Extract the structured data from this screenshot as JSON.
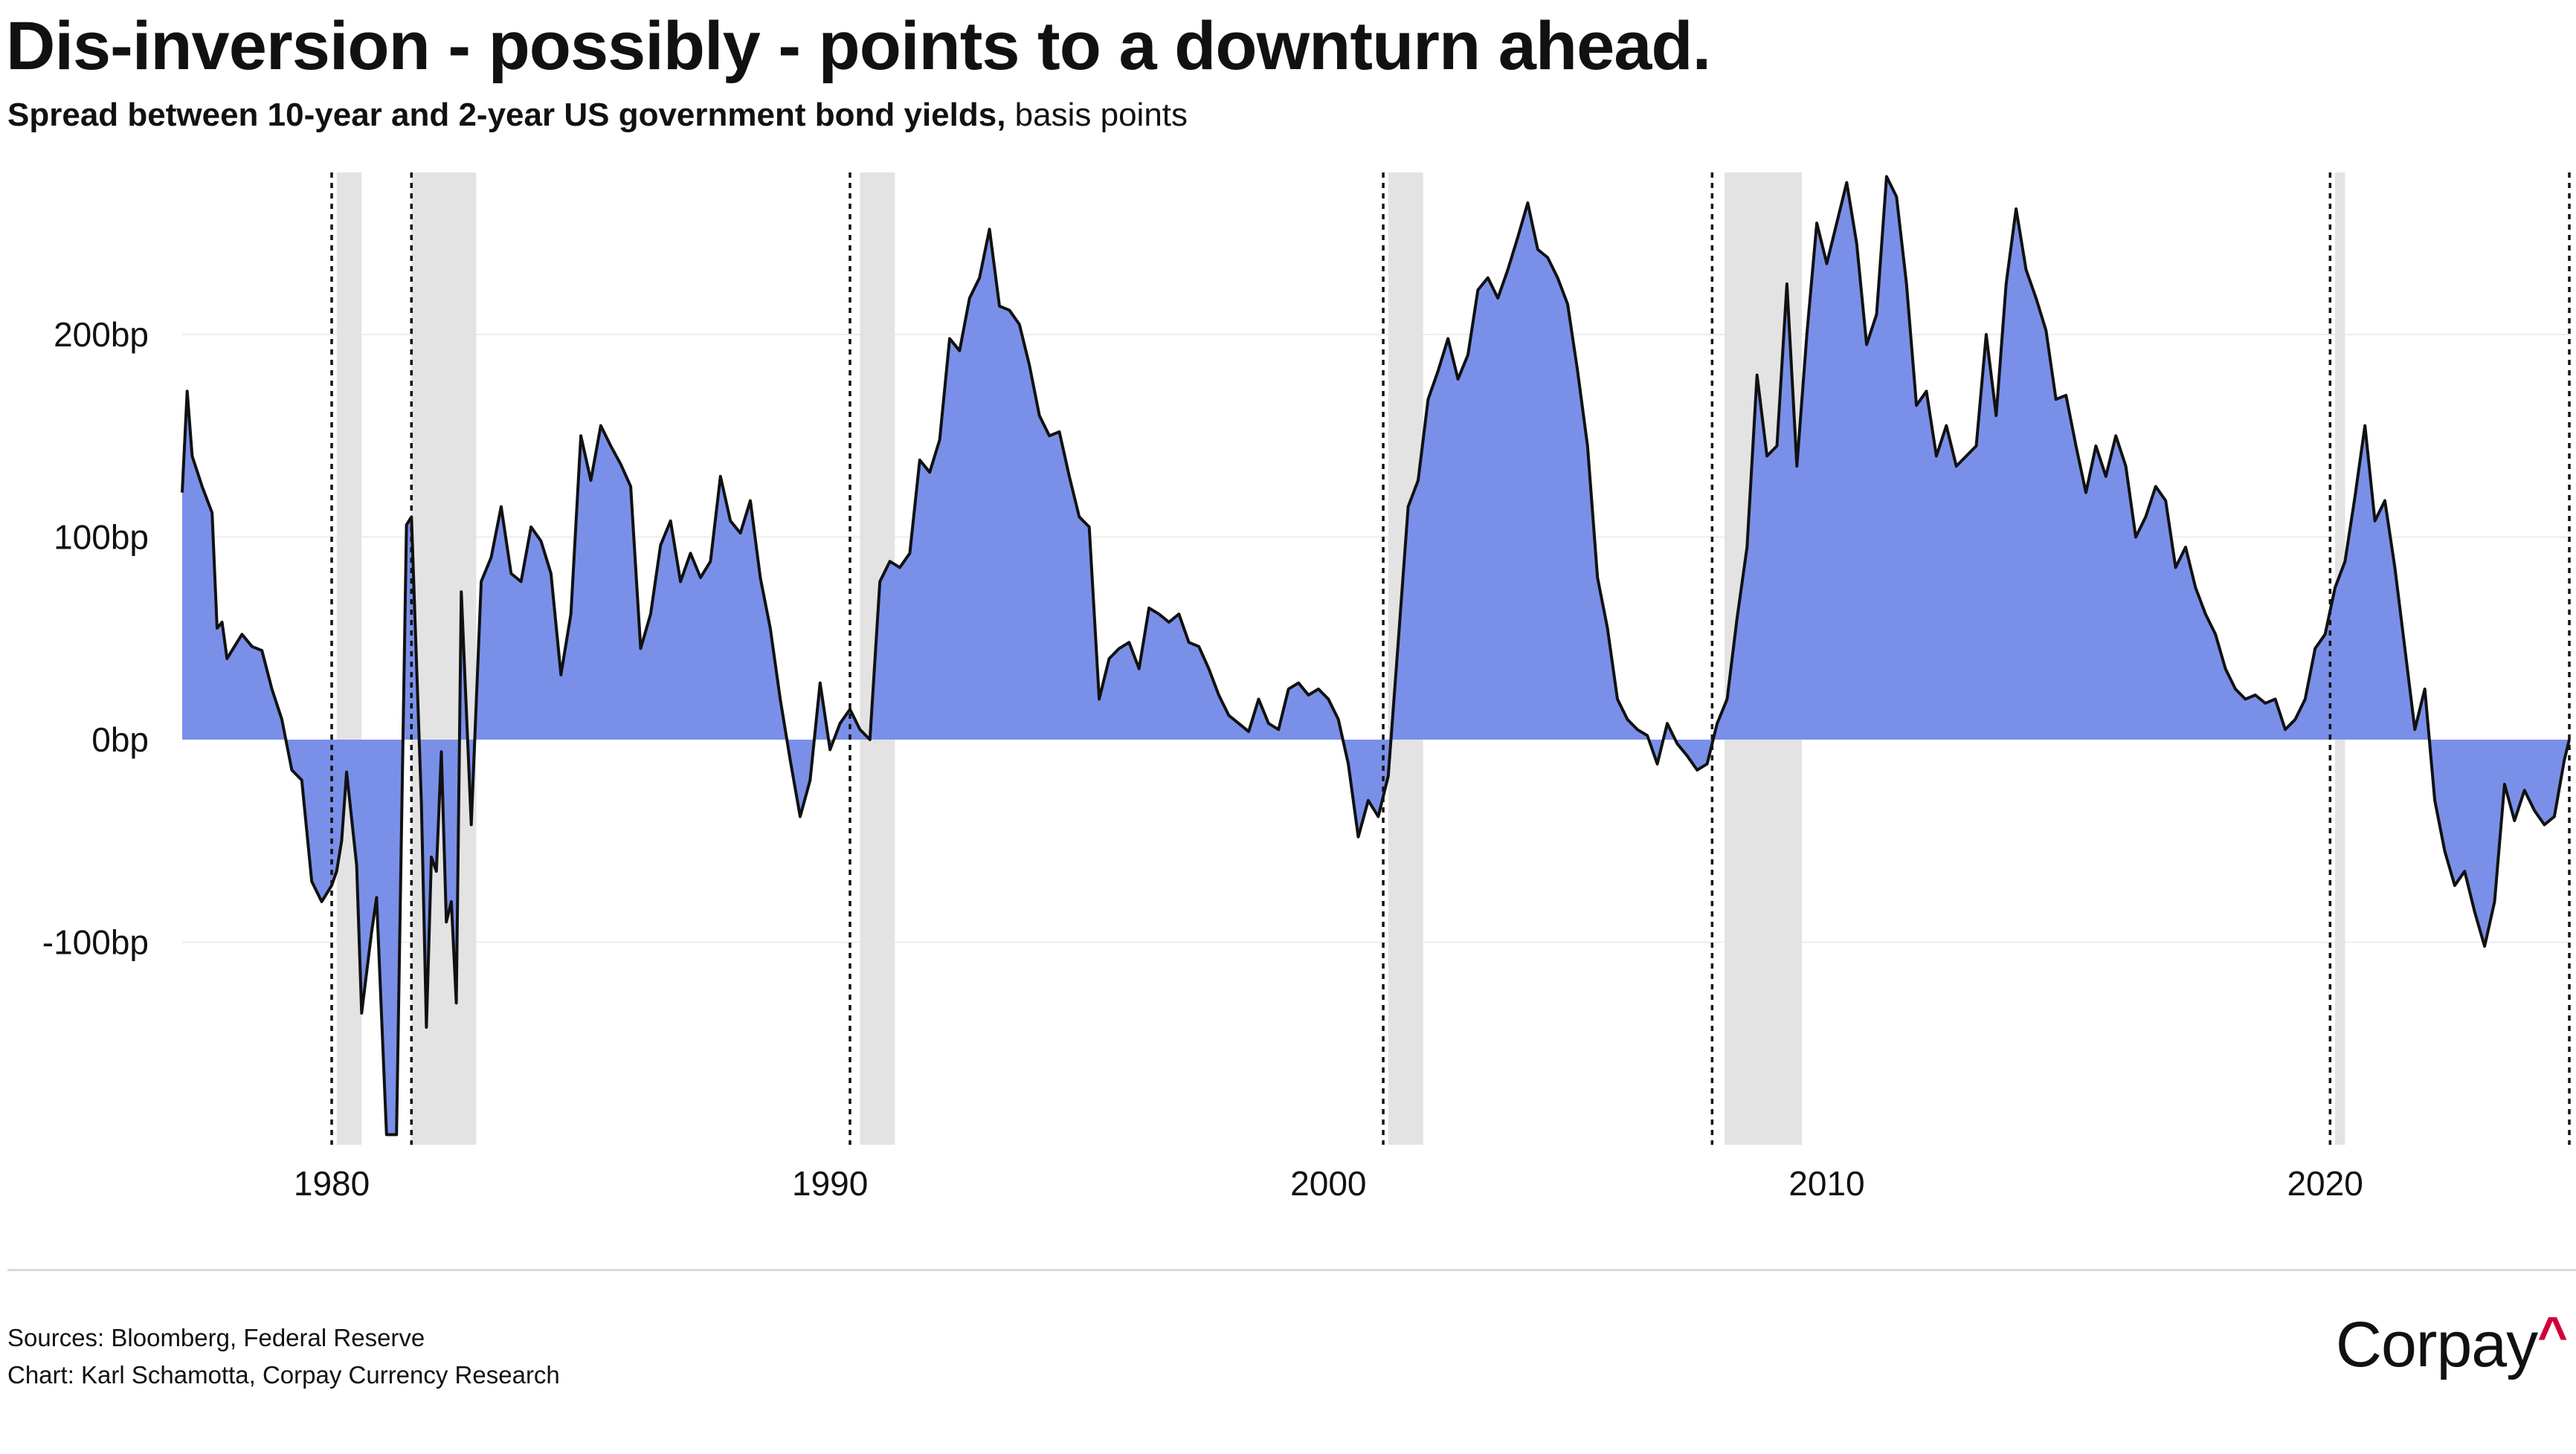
{
  "header": {
    "title": "Dis-inversion - possibly - points to a downturn ahead.",
    "subtitle_bold": "Spread between 10-year and 2-year US government bond yields,",
    "subtitle_unit": "basis points"
  },
  "footer": {
    "sources": "Sources: Bloomberg, Federal Reserve",
    "credit": "Chart: Karl Schamotta, Corpay Currency Research",
    "logo_text": "Corpay",
    "logo_caret": "^"
  },
  "colors": {
    "area_fill": "#7a90e8",
    "line": "#111111",
    "recession_band": "#e3e3e3",
    "grid": "#ececec",
    "logo_accent": "#d2003c"
  },
  "chart_data": {
    "type": "area",
    "title": "Dis-inversion - possibly - points to a downturn ahead.",
    "subtitle": "Spread between 10-year and 2-year US government bond yields, basis points",
    "xlabel": "",
    "ylabel": "",
    "x_range": [
      1977.0,
      2024.9
    ],
    "ylim": [
      -200,
      280
    ],
    "grid": true,
    "y_ticks": [
      {
        "value": 200,
        "label": "200bp"
      },
      {
        "value": 100,
        "label": "100bp"
      },
      {
        "value": 0,
        "label": "0bp"
      },
      {
        "value": -100,
        "label": "-100bp"
      }
    ],
    "x_ticks": [
      {
        "value": 1980,
        "label": "1980"
      },
      {
        "value": 1990,
        "label": "1990"
      },
      {
        "value": 2000,
        "label": "2000"
      },
      {
        "value": 2010,
        "label": "2010"
      },
      {
        "value": 2020,
        "label": "2020"
      }
    ],
    "recessions": [
      [
        1980.1,
        1980.6
      ],
      [
        1981.6,
        1982.9
      ],
      [
        1990.6,
        1991.3
      ],
      [
        2001.2,
        2001.9
      ],
      [
        2007.95,
        2009.5
      ],
      [
        2020.2,
        2020.4
      ]
    ],
    "dis_inversion_markers": [
      1980.0,
      1981.6,
      1990.4,
      2001.1,
      2007.7,
      2020.1,
      2024.9
    ],
    "series": [
      {
        "x": [
          1977.0,
          1977.1,
          1977.2,
          1977.4,
          1977.6,
          1977.7,
          1977.8,
          1977.9,
          1978.0,
          1978.2,
          1978.4,
          1978.6,
          1978.8,
          1979.0,
          1979.2,
          1979.4,
          1979.6,
          1979.8,
          1980.0,
          1980.1,
          1980.2,
          1980.3,
          1980.5,
          1980.6,
          1980.8,
          1980.9,
          1981.1,
          1981.3,
          1981.5,
          1981.6,
          1981.8,
          1981.9,
          1982.0,
          1982.1,
          1982.2,
          1982.3,
          1982.4,
          1982.5,
          1982.6,
          1982.8,
          1983.0,
          1983.2,
          1983.4,
          1983.6,
          1983.8,
          1984.0,
          1984.2,
          1984.4,
          1984.6,
          1984.8,
          1985.0,
          1985.2,
          1985.4,
          1985.6,
          1985.8,
          1986.0,
          1986.2,
          1986.4,
          1986.6,
          1986.8,
          1987.0,
          1987.2,
          1987.4,
          1987.6,
          1987.8,
          1988.0,
          1988.2,
          1988.4,
          1988.6,
          1988.8,
          1989.0,
          1989.2,
          1989.4,
          1989.6,
          1989.8,
          1990.0,
          1990.2,
          1990.4,
          1990.6,
          1990.8,
          1991.0,
          1991.2,
          1991.4,
          1991.6,
          1991.8,
          1992.0,
          1992.2,
          1992.4,
          1992.6,
          1992.8,
          1993.0,
          1993.2,
          1993.4,
          1993.6,
          1993.8,
          1994.0,
          1994.2,
          1994.4,
          1994.6,
          1994.8,
          1995.0,
          1995.2,
          1995.4,
          1995.6,
          1995.8,
          1996.0,
          1996.2,
          1996.4,
          1996.6,
          1996.8,
          1997.0,
          1997.2,
          1997.4,
          1997.6,
          1997.8,
          1998.0,
          1998.2,
          1998.4,
          1998.6,
          1998.8,
          1999.0,
          1999.2,
          1999.4,
          1999.6,
          1999.8,
          2000.0,
          2000.2,
          2000.4,
          2000.6,
          2000.8,
          2001.0,
          2001.2,
          2001.4,
          2001.6,
          2001.8,
          2002.0,
          2002.2,
          2002.4,
          2002.6,
          2002.8,
          2003.0,
          2003.2,
          2003.4,
          2003.6,
          2003.8,
          2004.0,
          2004.2,
          2004.4,
          2004.6,
          2004.8,
          2005.0,
          2005.2,
          2005.4,
          2005.6,
          2005.8,
          2006.0,
          2006.2,
          2006.4,
          2006.6,
          2006.8,
          2007.0,
          2007.2,
          2007.4,
          2007.6,
          2007.8,
          2008.0,
          2008.2,
          2008.4,
          2008.6,
          2008.8,
          2009.0,
          2009.2,
          2009.4,
          2009.6,
          2009.8,
          2010.0,
          2010.2,
          2010.4,
          2010.6,
          2010.8,
          2011.0,
          2011.2,
          2011.4,
          2011.6,
          2011.8,
          2012.0,
          2012.2,
          2012.4,
          2012.6,
          2012.8,
          2013.0,
          2013.2,
          2013.4,
          2013.6,
          2013.8,
          2014.0,
          2014.2,
          2014.4,
          2014.6,
          2014.8,
          2015.0,
          2015.2,
          2015.4,
          2015.6,
          2015.8,
          2016.0,
          2016.2,
          2016.4,
          2016.6,
          2016.8,
          2017.0,
          2017.2,
          2017.4,
          2017.6,
          2017.8,
          2018.0,
          2018.2,
          2018.4,
          2018.6,
          2018.8,
          2019.0,
          2019.2,
          2019.4,
          2019.6,
          2019.8,
          2020.0,
          2020.2,
          2020.4,
          2020.6,
          2020.8,
          2021.0,
          2021.2,
          2021.4,
          2021.6,
          2021.8,
          2022.0,
          2022.2,
          2022.4,
          2022.6,
          2022.8,
          2023.0,
          2023.2,
          2023.4,
          2023.6,
          2023.8,
          2024.0,
          2024.2,
          2024.4,
          2024.6,
          2024.8,
          2024.9
        ],
        "y": [
          122,
          172,
          140,
          125,
          112,
          55,
          58,
          40,
          44,
          52,
          46,
          44,
          25,
          10,
          -15,
          -20,
          -70,
          -80,
          -72,
          -65,
          -50,
          -16,
          -62,
          -135,
          -95,
          -78,
          -195,
          -195,
          106,
          110,
          -32,
          -142,
          -58,
          -65,
          -6,
          -90,
          -80,
          -130,
          73,
          -42,
          78,
          90,
          115,
          82,
          78,
          105,
          98,
          82,
          32,
          62,
          150,
          128,
          155,
          145,
          136,
          125,
          45,
          62,
          96,
          108,
          78,
          92,
          80,
          88,
          130,
          108,
          102,
          118,
          80,
          55,
          20,
          -10,
          -38,
          -20,
          28,
          -5,
          8,
          15,
          5,
          0,
          78,
          88,
          85,
          92,
          138,
          132,
          148,
          198,
          192,
          218,
          228,
          252,
          214,
          212,
          205,
          185,
          160,
          150,
          152,
          130,
          110,
          105,
          20,
          40,
          45,
          48,
          35,
          65,
          62,
          58,
          62,
          48,
          46,
          35,
          22,
          12,
          8,
          4,
          20,
          8,
          5,
          25,
          28,
          22,
          25,
          20,
          10,
          -12,
          -48,
          -30,
          -38,
          -18,
          48,
          115,
          128,
          168,
          182,
          198,
          178,
          190,
          222,
          228,
          218,
          232,
          248,
          265,
          242,
          238,
          228,
          215,
          182,
          145,
          80,
          55,
          20,
          10,
          5,
          2,
          -12,
          8,
          -2,
          -8,
          -15,
          -12,
          8,
          20,
          60,
          95,
          180,
          140,
          145,
          225,
          135,
          200,
          255,
          235,
          255,
          275,
          245,
          195,
          210,
          278,
          268,
          225,
          165,
          172,
          140,
          155,
          135,
          140,
          145,
          200,
          160,
          225,
          262,
          232,
          218,
          202,
          168,
          170,
          145,
          122,
          145,
          130,
          150,
          135,
          100,
          110,
          125,
          118,
          85,
          95,
          75,
          62,
          52,
          35,
          25,
          20,
          22,
          18,
          20,
          5,
          10,
          20,
          45,
          52,
          75,
          88,
          120,
          155,
          108,
          118,
          85,
          45,
          5,
          25,
          -30,
          -55,
          -72,
          -65,
          -85,
          -102,
          -80,
          -22,
          -40,
          -25,
          -35,
          -42,
          -38,
          -10,
          0
        ]
      }
    ]
  }
}
